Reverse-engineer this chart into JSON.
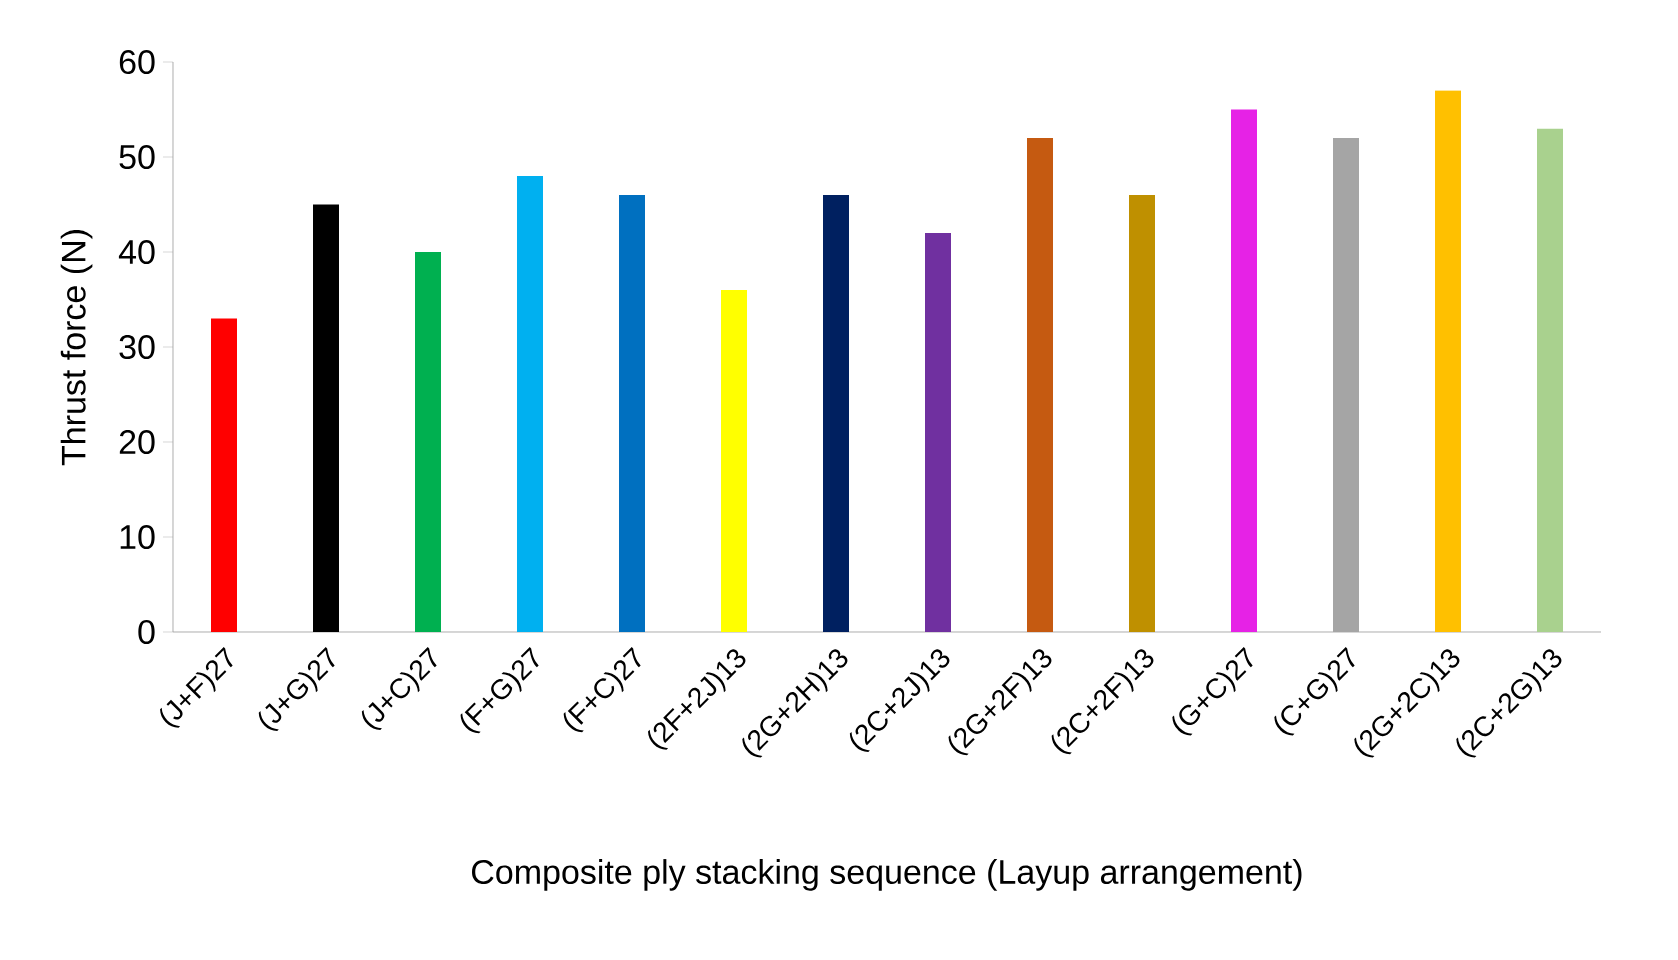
{
  "chart_data": {
    "type": "bar",
    "xlabel": "Composite ply stacking sequence (Layup arrangement)",
    "ylabel": "Thrust force (N)",
    "categories": [
      "(J+F)27",
      "(J+G)27",
      "(J+C)27",
      "(F+G)27",
      "(F+C)27",
      "(2F+2J)13",
      "(2G+2H)13",
      "(2C+2J)13",
      "(2G+2F)13",
      "(2C+2F)13",
      "(G+C)27",
      "(C+G)27",
      "(2G+2C)13",
      "(2C+2G)13"
    ],
    "values": [
      33,
      45,
      40,
      48,
      46,
      36,
      46,
      42,
      52,
      46,
      55,
      52,
      57,
      53
    ],
    "colors": [
      "#ff0000",
      "#000000",
      "#00b050",
      "#00b0f0",
      "#0070c0",
      "#ffff00",
      "#002060",
      "#7030a0",
      "#c55a11",
      "#bf9000",
      "#e622e6",
      "#a5a5a5",
      "#ffc000",
      "#a9d18e"
    ],
    "ylim": [
      0,
      60
    ],
    "yticks": [
      0,
      10,
      20,
      30,
      40,
      50,
      60
    ],
    "grid": false
  }
}
